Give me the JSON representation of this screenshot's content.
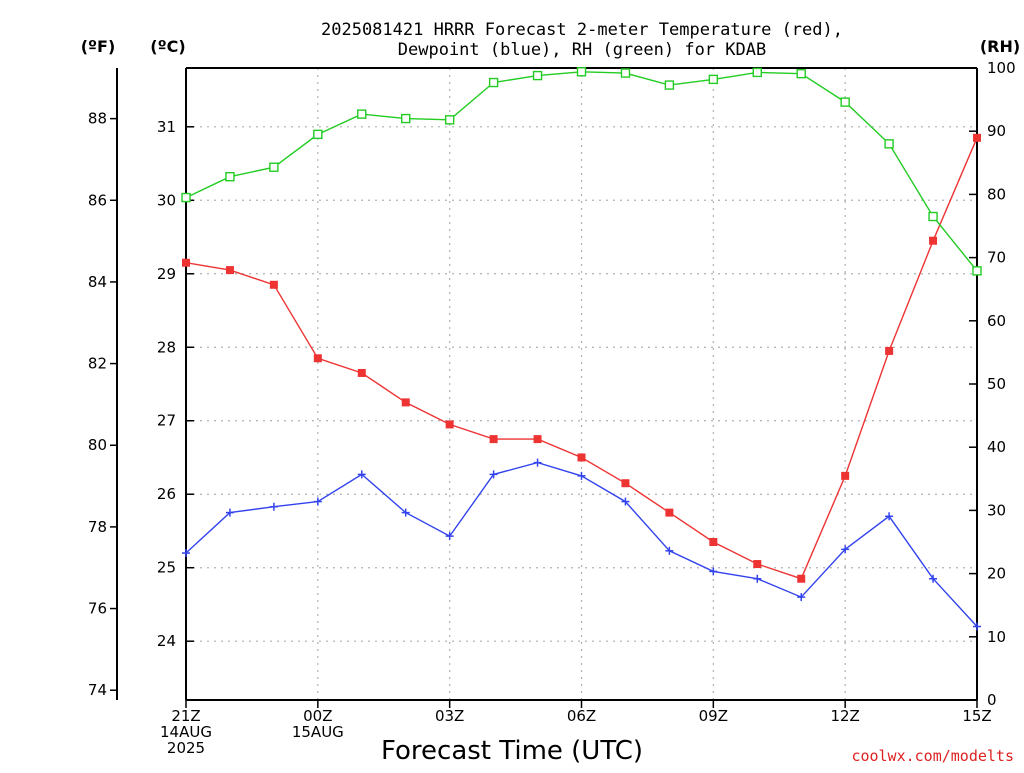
{
  "chart_data": {
    "type": "line",
    "title_lines": [
      "2025081421 HRRR Forecast 2-meter Temperature (red),",
      "Dewpoint (blue), RH (green) for KDAB"
    ],
    "xlabel": "Forecast Time (UTC)",
    "credit": "coolwx.com/modelts",
    "units": {
      "fahrenheit": "(ºF)",
      "celsius": "(ºC)",
      "rh": "(RH)"
    },
    "x_range_hours": [
      0,
      18
    ],
    "x_ticks": [
      {
        "hour": 0,
        "lines": [
          "21Z",
          "14AUG",
          "2025"
        ]
      },
      {
        "hour": 3,
        "lines": [
          "00Z",
          "15AUG"
        ]
      },
      {
        "hour": 6,
        "lines": [
          "03Z"
        ]
      },
      {
        "hour": 9,
        "lines": [
          "06Z"
        ]
      },
      {
        "hour": 12,
        "lines": [
          "09Z"
        ]
      },
      {
        "hour": 15,
        "lines": [
          "12Z"
        ]
      },
      {
        "hour": 18,
        "lines": [
          "15Z"
        ]
      }
    ],
    "y_celsius_range": [
      23.2,
      31.8
    ],
    "y_celsius_ticks": [
      "24",
      "25",
      "26",
      "27",
      "28",
      "29",
      "30",
      "31"
    ],
    "y_fahrenheit_ticks": [
      "74",
      "76",
      "78",
      "80",
      "82",
      "84",
      "86",
      "88"
    ],
    "y_rh_range": [
      0,
      100
    ],
    "y_rh_ticks": [
      "0",
      "10",
      "20",
      "30",
      "40",
      "50",
      "60",
      "70",
      "80",
      "90",
      "100"
    ],
    "grid": true,
    "series": [
      {
        "name": "Temperature (red)",
        "axis": "celsius",
        "color": "#ee3333",
        "marker": "filled-square",
        "values": [
          29.15,
          29.05,
          28.85,
          27.85,
          27.65,
          27.25,
          26.95,
          26.75,
          26.75,
          26.5,
          26.15,
          25.75,
          25.35,
          25.05,
          24.85,
          26.25,
          27.95,
          29.45,
          30.85
        ]
      },
      {
        "name": "Dewpoint (blue)",
        "axis": "celsius",
        "color": "#3344ee",
        "marker": "plus",
        "values": [
          25.2,
          25.75,
          25.83,
          25.9,
          26.27,
          25.75,
          25.43,
          26.27,
          26.43,
          26.25,
          25.9,
          25.23,
          24.95,
          24.85,
          24.6,
          25.25,
          25.7,
          24.85,
          24.2
        ]
      },
      {
        "name": "RH (green)",
        "axis": "rh",
        "color": "#22cc22",
        "marker": "open-square",
        "values": [
          79.5,
          82.8,
          84.3,
          89.5,
          92.7,
          92.0,
          91.8,
          97.7,
          98.8,
          99.4,
          99.2,
          97.3,
          98.2,
          99.3,
          99.1,
          94.6,
          88.0,
          76.5,
          67.9
        ]
      }
    ]
  }
}
